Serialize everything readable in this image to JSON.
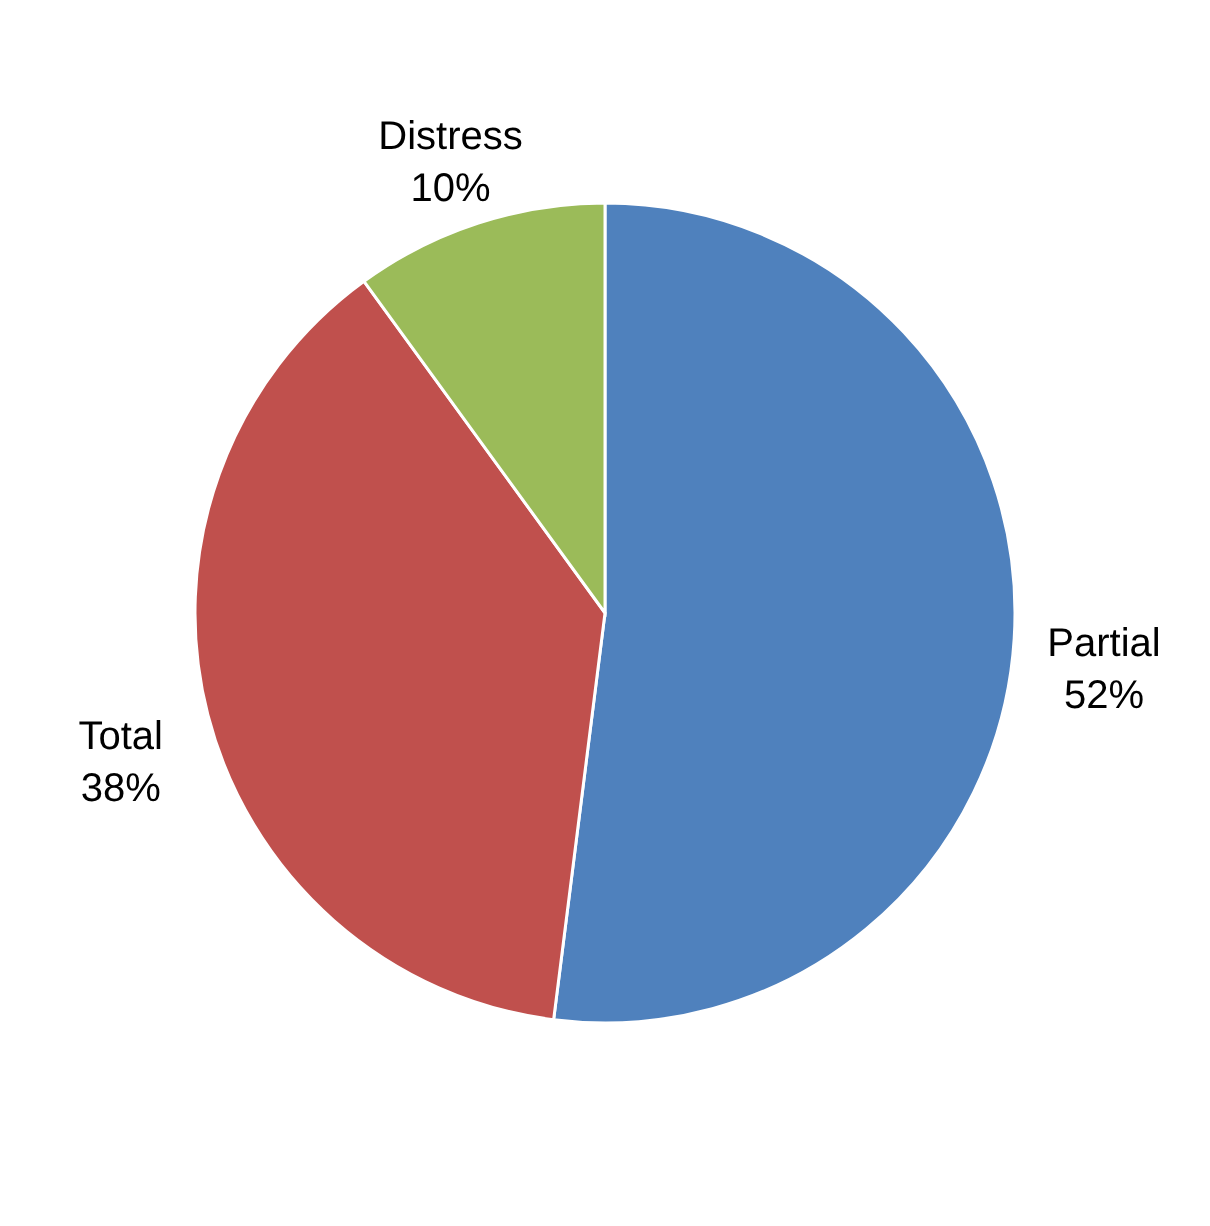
{
  "chart_data": {
    "type": "pie",
    "categories": [
      "Partial",
      "Total",
      "Distress"
    ],
    "values": [
      52,
      38,
      10
    ],
    "colors": [
      "#4f81bd",
      "#c0504d",
      "#9bbb59"
    ],
    "value_labels": [
      "52%",
      "38%",
      "10%"
    ]
  }
}
